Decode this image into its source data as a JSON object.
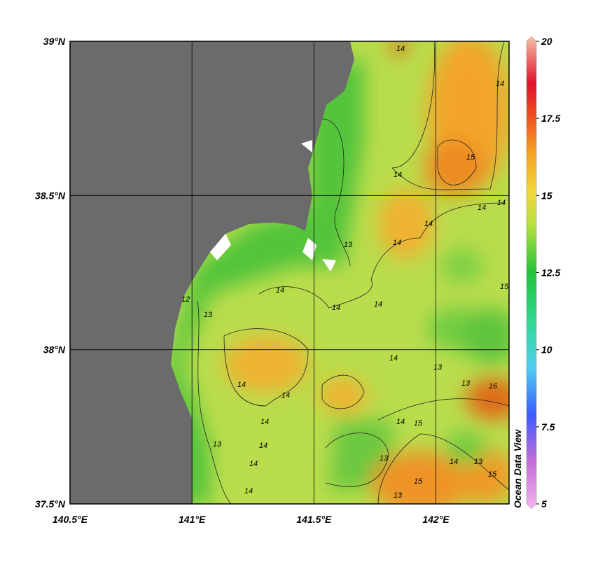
{
  "map": {
    "xlim": [
      140.5,
      142.3
    ],
    "ylim": [
      37.5,
      39
    ],
    "xticks": [
      {
        "value": 140.5,
        "label": "140.5°E"
      },
      {
        "value": 141,
        "label": "141°E"
      },
      {
        "value": 141.5,
        "label": "141.5°E"
      },
      {
        "value": 142,
        "label": "142°E"
      }
    ],
    "yticks": [
      {
        "value": 37.5,
        "label": "37.5°N"
      },
      {
        "value": 38,
        "label": "38°N"
      },
      {
        "value": 38.5,
        "label": "38.5°N"
      },
      {
        "value": 39,
        "label": "39°N"
      }
    ],
    "colorbar": {
      "range": [
        5,
        20
      ],
      "ticks": [
        5,
        7.5,
        10,
        12.5,
        15,
        17.5,
        20
      ]
    },
    "watermark": "Ocean Data View",
    "contour_labels": [
      14,
      14,
      15,
      14,
      14,
      14,
      14,
      14,
      15,
      14,
      14,
      14,
      12,
      13,
      13,
      14,
      14,
      14,
      14,
      14,
      15,
      13,
      13,
      16,
      14,
      14,
      13,
      14,
      13,
      15,
      15,
      13,
      14,
      13
    ]
  }
}
